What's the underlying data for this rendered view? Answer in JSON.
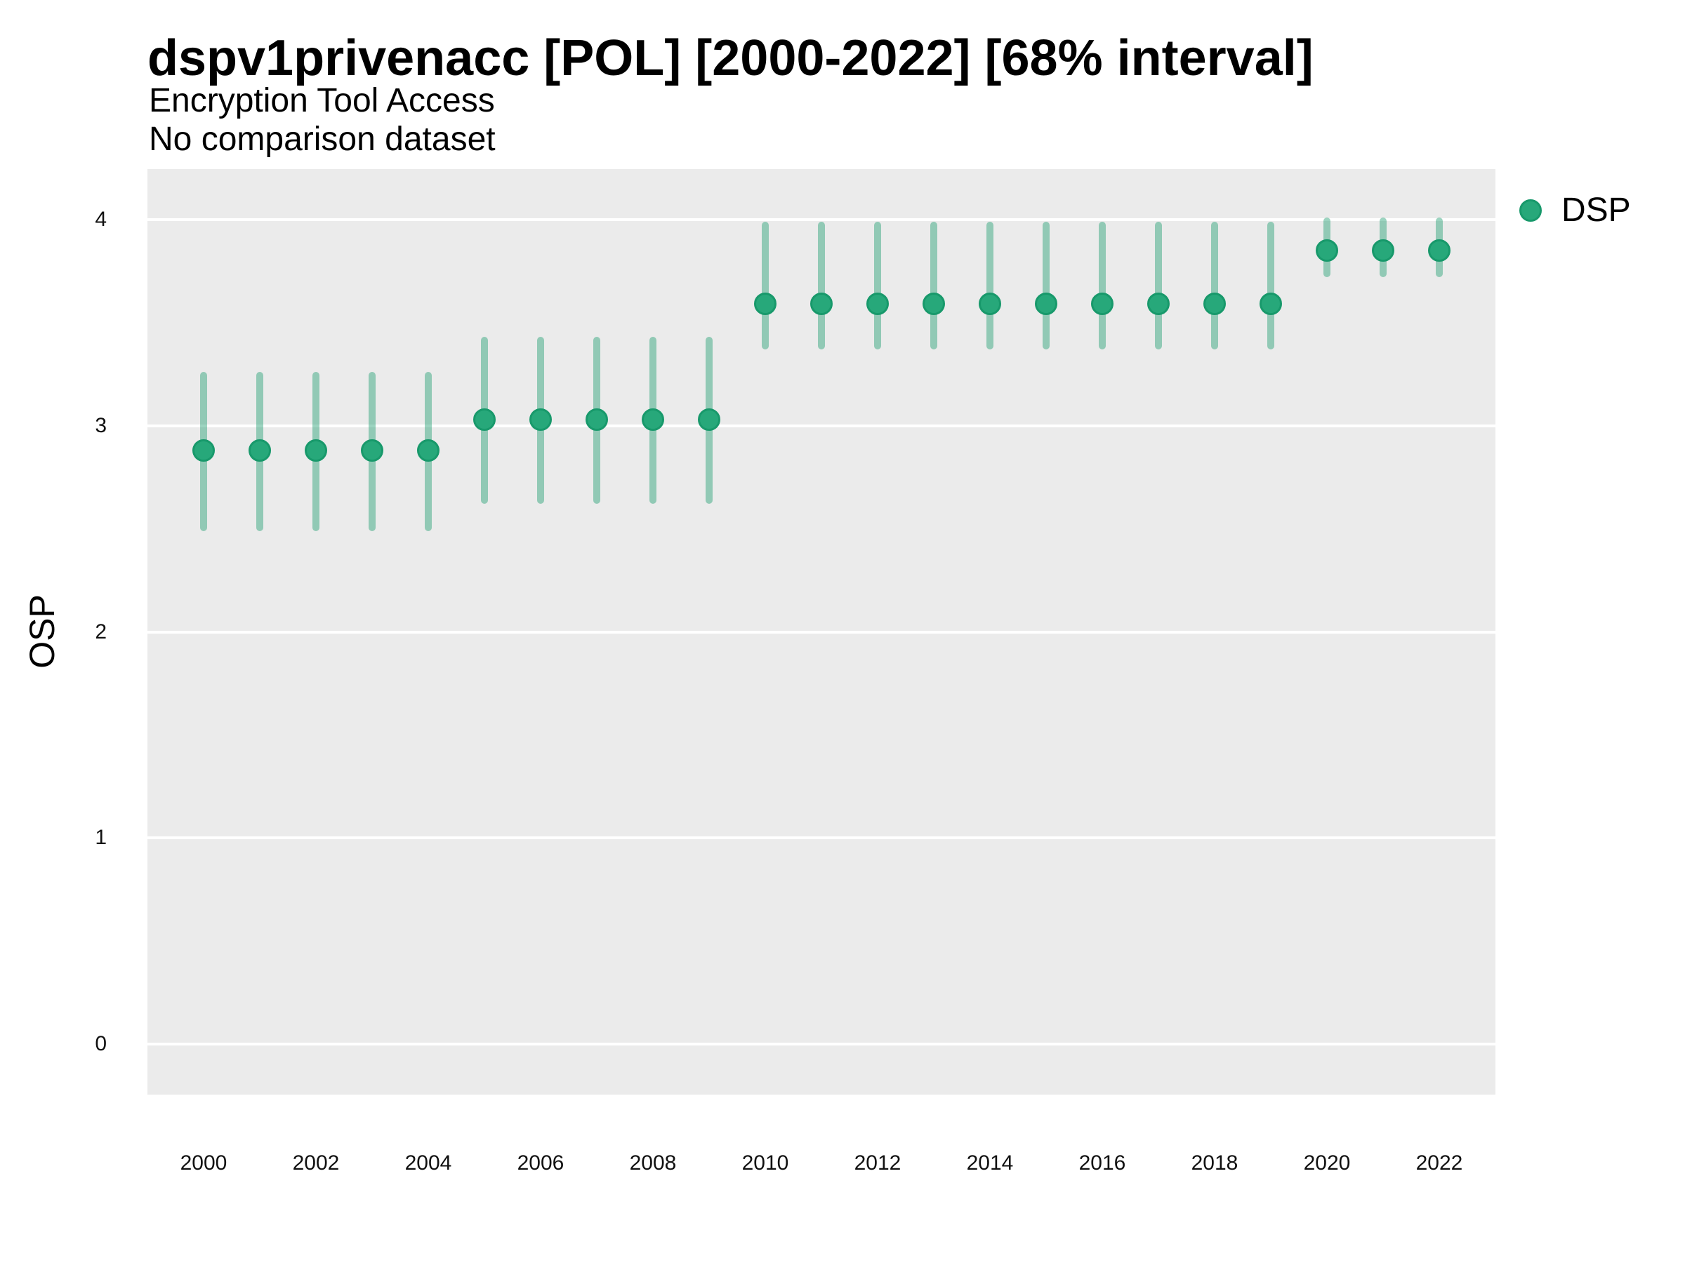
{
  "header": {
    "title": "dspv1privenacc [POL] [2000-2022] [68% interval]",
    "subtitle": "Encryption Tool Access",
    "note": "No comparison dataset"
  },
  "legend": {
    "items": [
      {
        "label": "DSP",
        "color": "#27a87a"
      }
    ]
  },
  "axes": {
    "y_label": "OSP",
    "y_ticks": [
      0,
      1,
      2,
      3,
      4
    ],
    "x_ticks": [
      2000,
      2002,
      2004,
      2006,
      2008,
      2010,
      2012,
      2014,
      2016,
      2018,
      2020,
      2022
    ]
  },
  "chart_data": {
    "type": "scatter",
    "title": "dspv1privenacc [POL] [2000-2022] [68% interval]",
    "subtitle": "Encryption Tool Access",
    "note": "No comparison dataset",
    "interval": "68%",
    "xlabel": "",
    "ylabel": "OSP",
    "ylim": [
      0,
      4
    ],
    "x_range": [
      2000,
      2022
    ],
    "grid": "horizontal-major-only",
    "legend_position": "right",
    "series": [
      {
        "name": "DSP",
        "points": [
          {
            "year": 2000,
            "value": 2.88,
            "lo": 2.49,
            "hi": 3.26
          },
          {
            "year": 2001,
            "value": 2.88,
            "lo": 2.49,
            "hi": 3.26
          },
          {
            "year": 2002,
            "value": 2.88,
            "lo": 2.49,
            "hi": 3.26
          },
          {
            "year": 2003,
            "value": 2.88,
            "lo": 2.49,
            "hi": 3.26
          },
          {
            "year": 2004,
            "value": 2.88,
            "lo": 2.49,
            "hi": 3.26
          },
          {
            "year": 2005,
            "value": 3.03,
            "lo": 2.62,
            "hi": 3.43
          },
          {
            "year": 2006,
            "value": 3.03,
            "lo": 2.62,
            "hi": 3.43
          },
          {
            "year": 2007,
            "value": 3.03,
            "lo": 2.62,
            "hi": 3.43
          },
          {
            "year": 2008,
            "value": 3.03,
            "lo": 2.62,
            "hi": 3.43
          },
          {
            "year": 2009,
            "value": 3.03,
            "lo": 2.62,
            "hi": 3.43
          },
          {
            "year": 2010,
            "value": 3.59,
            "lo": 3.37,
            "hi": 3.99
          },
          {
            "year": 2011,
            "value": 3.59,
            "lo": 3.37,
            "hi": 3.99
          },
          {
            "year": 2012,
            "value": 3.59,
            "lo": 3.37,
            "hi": 3.99
          },
          {
            "year": 2013,
            "value": 3.59,
            "lo": 3.37,
            "hi": 3.99
          },
          {
            "year": 2014,
            "value": 3.59,
            "lo": 3.37,
            "hi": 3.99
          },
          {
            "year": 2015,
            "value": 3.59,
            "lo": 3.37,
            "hi": 3.99
          },
          {
            "year": 2016,
            "value": 3.59,
            "lo": 3.37,
            "hi": 3.99
          },
          {
            "year": 2017,
            "value": 3.59,
            "lo": 3.37,
            "hi": 3.99
          },
          {
            "year": 2018,
            "value": 3.59,
            "lo": 3.37,
            "hi": 3.99
          },
          {
            "year": 2019,
            "value": 3.59,
            "lo": 3.37,
            "hi": 3.99
          },
          {
            "year": 2020,
            "value": 3.85,
            "lo": 3.72,
            "hi": 4.01
          },
          {
            "year": 2021,
            "value": 3.85,
            "lo": 3.72,
            "hi": 4.01
          },
          {
            "year": 2022,
            "value": 3.85,
            "lo": 3.72,
            "hi": 4.01
          }
        ]
      }
    ]
  },
  "colors": {
    "point_fill": "#27a87a",
    "point_stroke": "#18996b",
    "interval": "rgba(35,160,115,0.45)",
    "panel_bg": "#ebebeb",
    "gridline": "#ffffff",
    "text": "#000000"
  }
}
